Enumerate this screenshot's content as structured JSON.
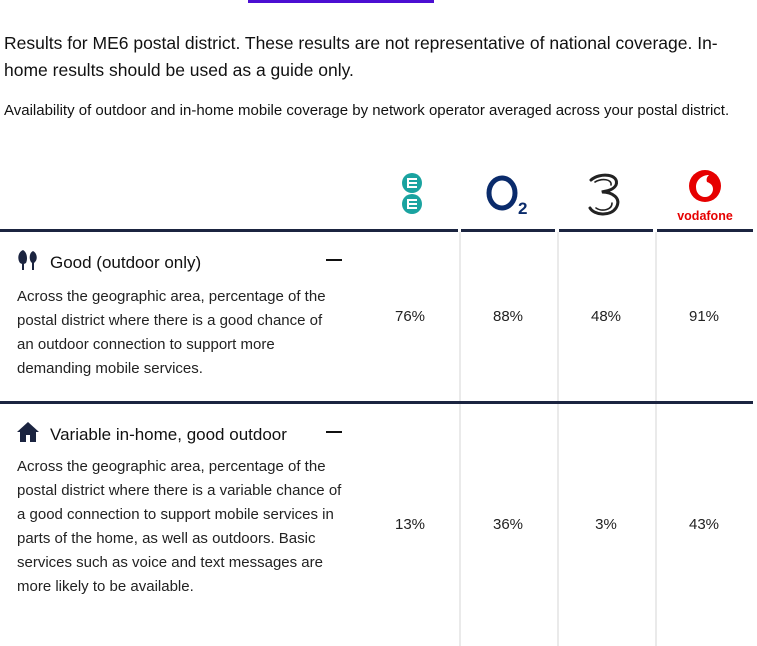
{
  "heading": "Results for ME6 postal district. These results are not representative of national coverage. In-home results should be used as a guide only.",
  "subheading": "Availability of outdoor and in-home mobile coverage by network operator averaged across your postal district.",
  "operators": [
    {
      "name": "EE",
      "logo_icon": "ee-logo",
      "color": "#1aa3a0"
    },
    {
      "name": "O2",
      "logo_icon": "o2-logo",
      "color": "#0a2b6b",
      "sub": "2"
    },
    {
      "name": "Three",
      "logo_icon": "three-logo",
      "color": "#222222"
    },
    {
      "name": "Vodafone",
      "logo_icon": "vodafone-logo",
      "color": "#e60000",
      "wordmark": "vodafone"
    }
  ],
  "rows": [
    {
      "icon": "trees-icon",
      "title": "Good (outdoor only)",
      "description": "Across the geographic area, percentage of the postal district where there is a good chance of an outdoor connection to support more demanding mobile services.",
      "values": [
        "76%",
        "88%",
        "48%",
        "91%"
      ]
    },
    {
      "icon": "house-icon",
      "title": "Variable in-home, good outdoor",
      "description": "Across the geographic area, percentage of the postal district where there is a variable chance of a good connection to support mobile services in parts of the home, as well as outdoors. Basic services such as voice and text messages are more likely to be available.",
      "values": [
        "13%",
        "36%",
        "3%",
        "43%"
      ]
    }
  ],
  "colors": {
    "accent": "#4b0fd2",
    "rule": "#1b2440"
  }
}
